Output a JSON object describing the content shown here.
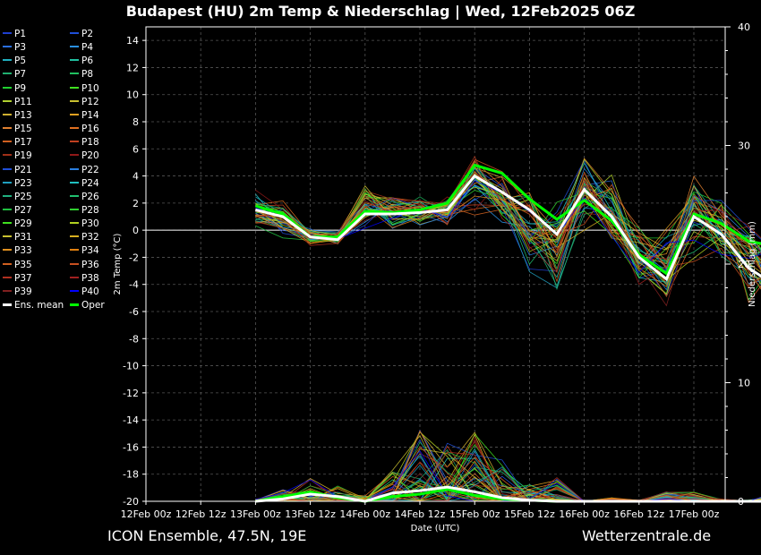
{
  "title": "Budapest  (HU)  2m Temp & Niederschlag | Wed, 12Feb2025 06Z",
  "footer": {
    "model": "ICON Ensemble, 47.5N, 19E",
    "site": "Wetterzentrale.de"
  },
  "legend_entries": [
    {
      "label": "P1",
      "color": "#1f3fd0"
    },
    {
      "label": "P2",
      "color": "#1f4fd8"
    },
    {
      "label": "P3",
      "color": "#2a6fe0"
    },
    {
      "label": "P4",
      "color": "#2a8fe0"
    },
    {
      "label": "P5",
      "color": "#20b0c0"
    },
    {
      "label": "P6",
      "color": "#20c0a0"
    },
    {
      "label": "P7",
      "color": "#20b070"
    },
    {
      "label": "P8",
      "color": "#20c060"
    },
    {
      "label": "P9",
      "color": "#20d030"
    },
    {
      "label": "P10",
      "color": "#40e020"
    },
    {
      "label": "P11",
      "color": "#b0d030"
    },
    {
      "label": "P12",
      "color": "#c8c030"
    },
    {
      "label": "P13",
      "color": "#d0b030"
    },
    {
      "label": "P14",
      "color": "#e0a020"
    },
    {
      "label": "P15",
      "color": "#e08030"
    },
    {
      "label": "P16",
      "color": "#e07020"
    },
    {
      "label": "P17",
      "color": "#d06020"
    },
    {
      "label": "P18",
      "color": "#c04020"
    },
    {
      "label": "P19",
      "color": "#a03018"
    },
    {
      "label": "P20",
      "color": "#901818"
    },
    {
      "label": "P21",
      "color": "#1f4fd8"
    },
    {
      "label": "P22",
      "color": "#2a7fe0"
    },
    {
      "label": "P23",
      "color": "#20a0c0"
    },
    {
      "label": "P24",
      "color": "#20c0c0"
    },
    {
      "label": "P25",
      "color": "#20b080"
    },
    {
      "label": "P26",
      "color": "#20c070"
    },
    {
      "label": "P27",
      "color": "#20c040"
    },
    {
      "label": "P28",
      "color": "#30d030"
    },
    {
      "label": "P29",
      "color": "#40e020"
    },
    {
      "label": "P30",
      "color": "#b0d020"
    },
    {
      "label": "P31",
      "color": "#c8c030"
    },
    {
      "label": "P32",
      "color": "#d8b020"
    },
    {
      "label": "P33",
      "color": "#e09020"
    },
    {
      "label": "P34",
      "color": "#e08010"
    },
    {
      "label": "P35",
      "color": "#d06020"
    },
    {
      "label": "P36",
      "color": "#c85020"
    },
    {
      "label": "P37",
      "color": "#b03020"
    },
    {
      "label": "P38",
      "color": "#a02020"
    },
    {
      "label": "P39",
      "color": "#802020"
    },
    {
      "label": "P40",
      "color": "#0000ff"
    },
    {
      "label": "Ens. mean",
      "color": "#ffffff",
      "bold": true
    },
    {
      "label": "Oper",
      "color": "#00ff00",
      "bold": true
    }
  ],
  "chart_data": {
    "type": "line",
    "xlabel": "Date (UTC)",
    "ylabel": "2m Temp (°C)",
    "y2label": "Niederschlag (mm)",
    "xticks": [
      "12Feb 00z",
      "12Feb 12z",
      "13Feb 00z",
      "13Feb 12z",
      "14Feb 00z",
      "14Feb 12z",
      "15Feb 00z",
      "15Feb 12z",
      "16Feb 00z",
      "16Feb 12z",
      "17Feb 00z"
    ],
    "x_step_hours": 6,
    "ylim": [
      -20,
      15
    ],
    "yticks": [
      14,
      12,
      10,
      8,
      6,
      4,
      2,
      0,
      -2,
      -4,
      -6,
      -8,
      -10,
      -12,
      -14,
      -16,
      -18,
      -20
    ],
    "y2lim": [
      0,
      40
    ],
    "y2ticks": [
      0,
      10,
      20,
      30,
      40
    ],
    "grid": true,
    "temperature": {
      "x_index_start": 4,
      "ens_mean": [
        1.5,
        1.0,
        -0.5,
        -0.7,
        1.2,
        1.2,
        1.3,
        1.5,
        4.0,
        2.8,
        1.5,
        -0.3,
        3.0,
        1.0,
        -2.0,
        -3.6,
        1.0,
        -0.3,
        -2.8,
        -4.1
      ],
      "oper": [
        1.8,
        1.2,
        -0.5,
        -0.5,
        1.4,
        1.3,
        1.5,
        2.0,
        4.8,
        4.2,
        2.3,
        0.8,
        2.2,
        0.7,
        -1.8,
        -3.2,
        1.2,
        0.5,
        -0.8,
        -1.2
      ],
      "member_spread_low": [
        -0.2,
        -0.8,
        -1.3,
        -1.3,
        0.0,
        0.0,
        0.0,
        0.2,
        0.6,
        -0.5,
        -3.3,
        -4.7,
        -0.2,
        -1.8,
        -4.8,
        -6.2,
        -2.6,
        -2.8,
        -6.0,
        -7.0
      ],
      "member_spread_high": [
        3.2,
        2.3,
        0.2,
        0.0,
        3.5,
        2.6,
        2.7,
        2.5,
        6.3,
        4.8,
        3.9,
        3.5,
        6.7,
        4.8,
        0.8,
        0.5,
        4.3,
        3.3,
        1.4,
        1.0
      ]
    },
    "precipitation_mm": {
      "x_index_start": 4,
      "ens_mean": [
        0.0,
        0.2,
        0.6,
        0.4,
        0.0,
        0.7,
        0.9,
        1.2,
        0.8,
        0.3,
        0.1,
        0.0,
        0.0,
        0.0,
        0.0,
        0.0,
        0.0,
        0.0,
        0.0,
        0.0
      ],
      "oper": [
        0.0,
        0.4,
        0.8,
        0.3,
        0.0,
        0.4,
        0.6,
        1.0,
        0.5,
        0.2,
        0.1,
        0.0,
        0.0,
        0.0,
        0.0,
        0.0,
        0.0,
        0.0,
        0.0,
        0.0
      ],
      "member_max": [
        0.2,
        1.0,
        2.0,
        1.5,
        0.5,
        3.0,
        6.0,
        5.2,
        6.0,
        3.6,
        1.7,
        2.0,
        0.0,
        0.3,
        0.1,
        0.8,
        0.8,
        0.2,
        0.1,
        0.8
      ]
    }
  }
}
